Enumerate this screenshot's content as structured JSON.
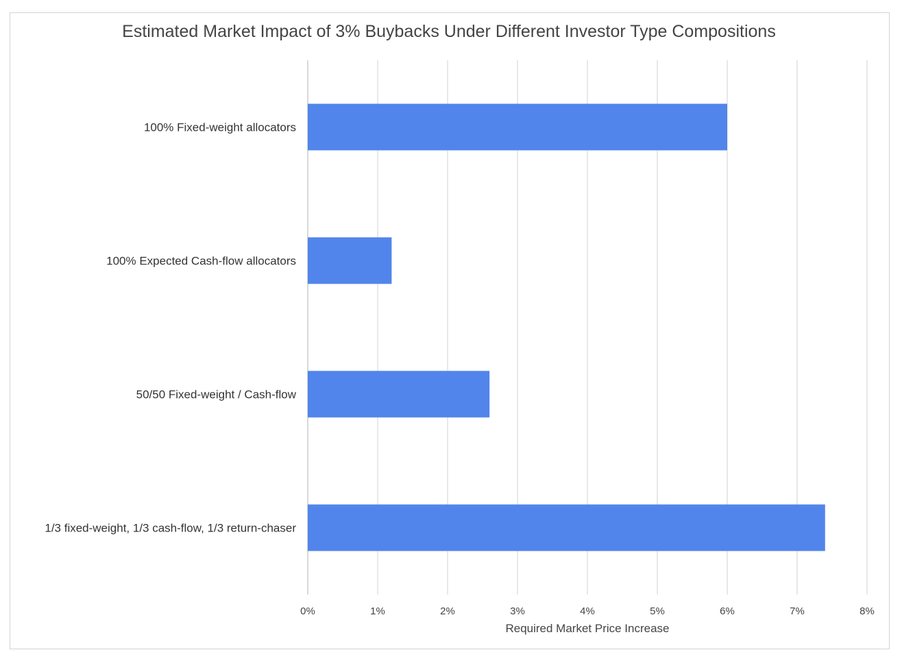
{
  "chart_data": {
    "type": "bar",
    "orientation": "horizontal",
    "title": "Estimated Market Impact of 3% Buybacks Under Different Investor Type Compositions",
    "xlabel": "Required Market Price Increase",
    "ylabel": "",
    "categories": [
      "100% Fixed-weight allocators",
      "100% Expected Cash-flow allocators",
      "50/50 Fixed-weight / Cash-flow",
      "1/3 fixed-weight, 1/3 cash-flow, 1/3 return-chaser"
    ],
    "values": [
      6.0,
      1.2,
      2.6,
      7.4
    ],
    "value_unit": "%",
    "xlim": [
      0,
      8
    ],
    "x_ticks": [
      0,
      1,
      2,
      3,
      4,
      5,
      6,
      7,
      8
    ],
    "x_tick_labels": [
      "0%",
      "1%",
      "2%",
      "3%",
      "4%",
      "5%",
      "6%",
      "7%",
      "8%"
    ],
    "grid": "vertical",
    "legend": "none",
    "bar_color": "#5285EB",
    "grid_color": "#D9D9D9"
  }
}
